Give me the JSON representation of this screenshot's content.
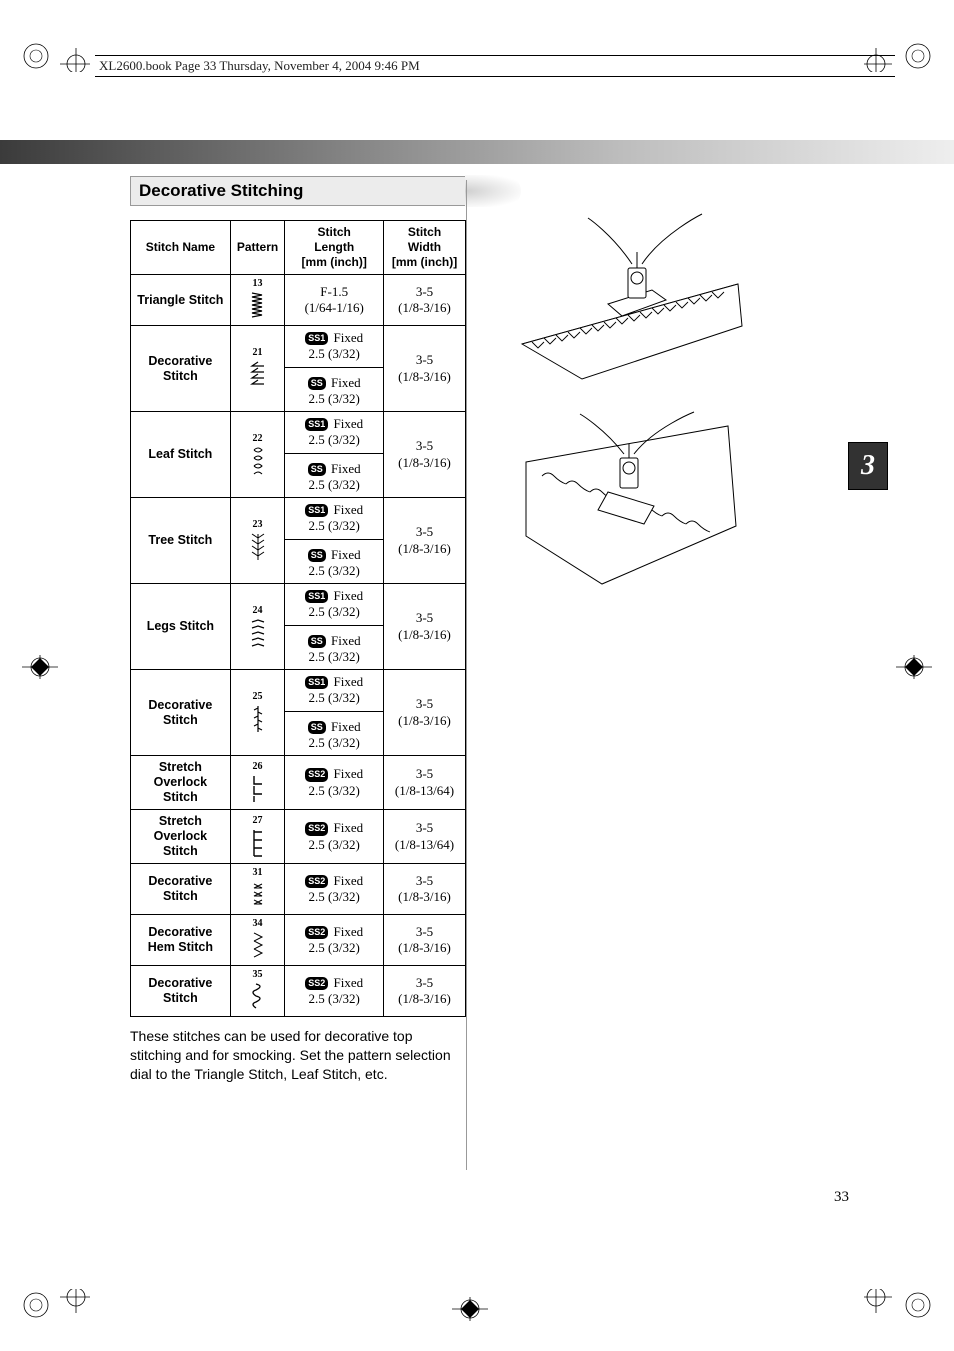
{
  "header_note": "XL2600.book  Page 33  Thursday, November 4, 2004  9:46 PM",
  "section_title": "Decorative Stitching",
  "chapter_number": "3",
  "page_number": "33",
  "body_text": "These stitches can be used for decorative top stitching and for smocking. Set the pattern selection dial to the Triangle Stitch, Leaf Stitch, etc.",
  "table": {
    "headers": {
      "name": "Stitch Name",
      "pattern": "Pattern",
      "length": "Stitch\nLength\n[mm (inch)]",
      "width": "Stitch\nWidth\n[mm (inch)]"
    },
    "rows": [
      {
        "name": "Triangle Stitch",
        "num": "13",
        "len_mode": "single",
        "len1": "F-1.5",
        "len1b": "(1/64-1/16)",
        "wid": "3-5",
        "widb": "(1/8-3/16)"
      },
      {
        "name": "Decorative\nStitch",
        "num": "21",
        "len_mode": "ss1ss",
        "wid": "3-5",
        "widb": "(1/8-3/16)"
      },
      {
        "name": "Leaf Stitch",
        "num": "22",
        "len_mode": "ss1ss",
        "wid": "3-5",
        "widb": "(1/8-3/16)"
      },
      {
        "name": "Tree Stitch",
        "num": "23",
        "len_mode": "ss1ss",
        "wid": "3-5",
        "widb": "(1/8-3/16)"
      },
      {
        "name": "Legs Stitch",
        "num": "24",
        "len_mode": "ss1ss",
        "wid": "3-5",
        "widb": "(1/8-3/16)"
      },
      {
        "name": "Decorative\nStitch",
        "num": "25",
        "len_mode": "ss1ss",
        "wid": "3-5",
        "widb": "(1/8-3/16)"
      },
      {
        "name": "Stretch\nOverlock\nStitch",
        "num": "26",
        "len_mode": "ss2",
        "wid": "3-5",
        "widb": "(1/8-13/64)"
      },
      {
        "name": "Stretch\nOverlock\nStitch",
        "num": "27",
        "len_mode": "ss2",
        "wid": "3-5",
        "widb": "(1/8-13/64)"
      },
      {
        "name": "Decorative\nStitch",
        "num": "31",
        "len_mode": "ss2",
        "wid": "3-5",
        "widb": "(1/8-3/16)"
      },
      {
        "name": "Decorative\nHem Stitch",
        "num": "34",
        "len_mode": "ss2",
        "wid": "3-5",
        "widb": "(1/8-3/16)"
      },
      {
        "name": "Decorative\nStitch",
        "num": "35",
        "len_mode": "ss2",
        "wid": "3-5",
        "widb": "(1/8-3/16)"
      }
    ],
    "len_labels": {
      "ss1": "SS1",
      "ss": "SS",
      "ss2": "SS2",
      "fixed": "Fixed",
      "fixed_val": "2.5 (3/32)"
    }
  },
  "colors": {
    "page_bg": "#ffffff",
    "header_bg": "#ececec",
    "tab_bg": "#323232",
    "gradient_from": "#3b3b3b",
    "gradient_to": "#eeeeee",
    "text": "#000000"
  },
  "figures": {
    "fig1_alt": "Presser foot sewing triangle stitch on fabric edge",
    "fig2_alt": "Presser foot sewing decorative loop stitch diagonally"
  }
}
